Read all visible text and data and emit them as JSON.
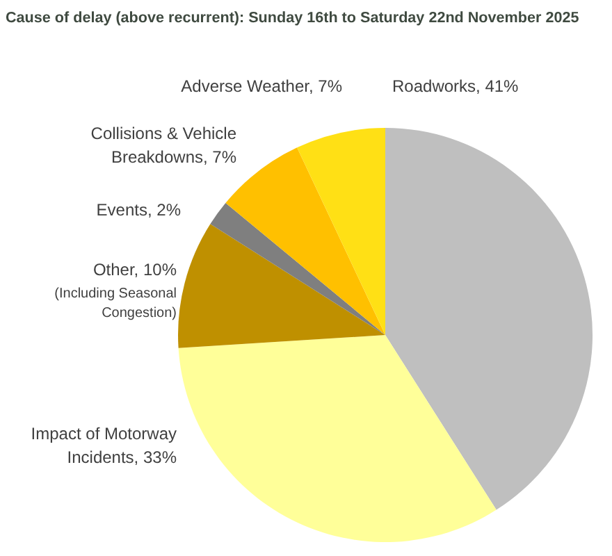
{
  "chart_data": {
    "type": "pie",
    "title": "Cause of delay (above recurrent): Sunday 16th to Saturday 22nd November 2025",
    "categories": [
      "Roadworks",
      "Impact of Motorway Incidents",
      "Other",
      "Events",
      "Collisions & Vehicle Breakdowns",
      "Adverse Weather"
    ],
    "values": [
      41,
      33,
      10,
      2,
      7,
      7
    ],
    "value_labels": [
      "41%",
      "33%",
      "10%",
      "2%",
      "7%",
      "7%"
    ],
    "colors": [
      "#bfbfbf",
      "#ffff99",
      "#bf9000",
      "#7f7f7f",
      "#ffc000",
      "#ffe015"
    ],
    "annotations": [
      "(Including Seasonal Congestion)"
    ]
  }
}
